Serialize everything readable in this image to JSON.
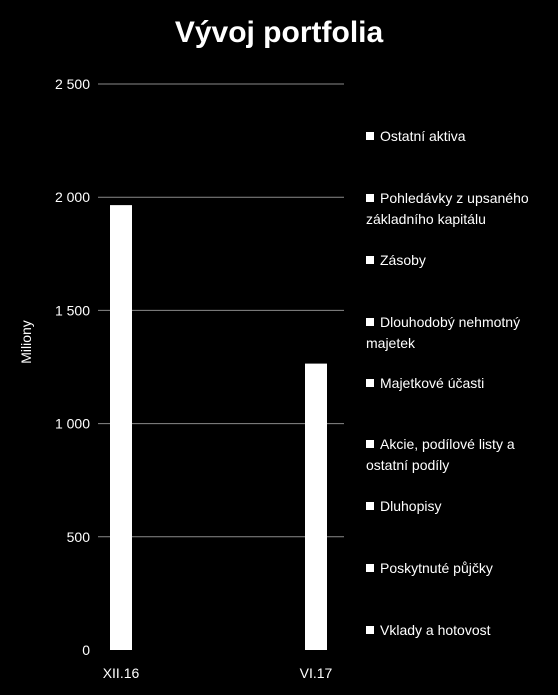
{
  "chart_data": {
    "type": "bar",
    "title": "Vývoj portfolia",
    "ylabel": "Miliony",
    "xlabel": "",
    "categories": [
      "XII.16",
      "VI.17"
    ],
    "values": [
      1965,
      1265
    ],
    "ylim": [
      0,
      2500
    ],
    "yticks": [
      0,
      500,
      1000,
      1500,
      2000,
      2500
    ],
    "ytick_labels": [
      "0",
      "500",
      "1 000",
      "1 500",
      "2 000",
      "2 500"
    ],
    "grid": true,
    "legend_placement": "right",
    "legend": [
      "Ostatní aktiva",
      "Pohledávky z upsaného základního kapitálu",
      "Zásoby",
      "Dlouhodobý nehmotný majetek",
      "Majetkové účasti",
      "Akcie, podílové listy a ostatní podíly",
      "Dluhopisy",
      "Poskytnuté půjčky",
      "Vklady a hotovost"
    ],
    "colors": {
      "background": "#000000",
      "bar": "#ffffff",
      "grid": "#8a8a8a",
      "text": "#ffffff"
    }
  }
}
